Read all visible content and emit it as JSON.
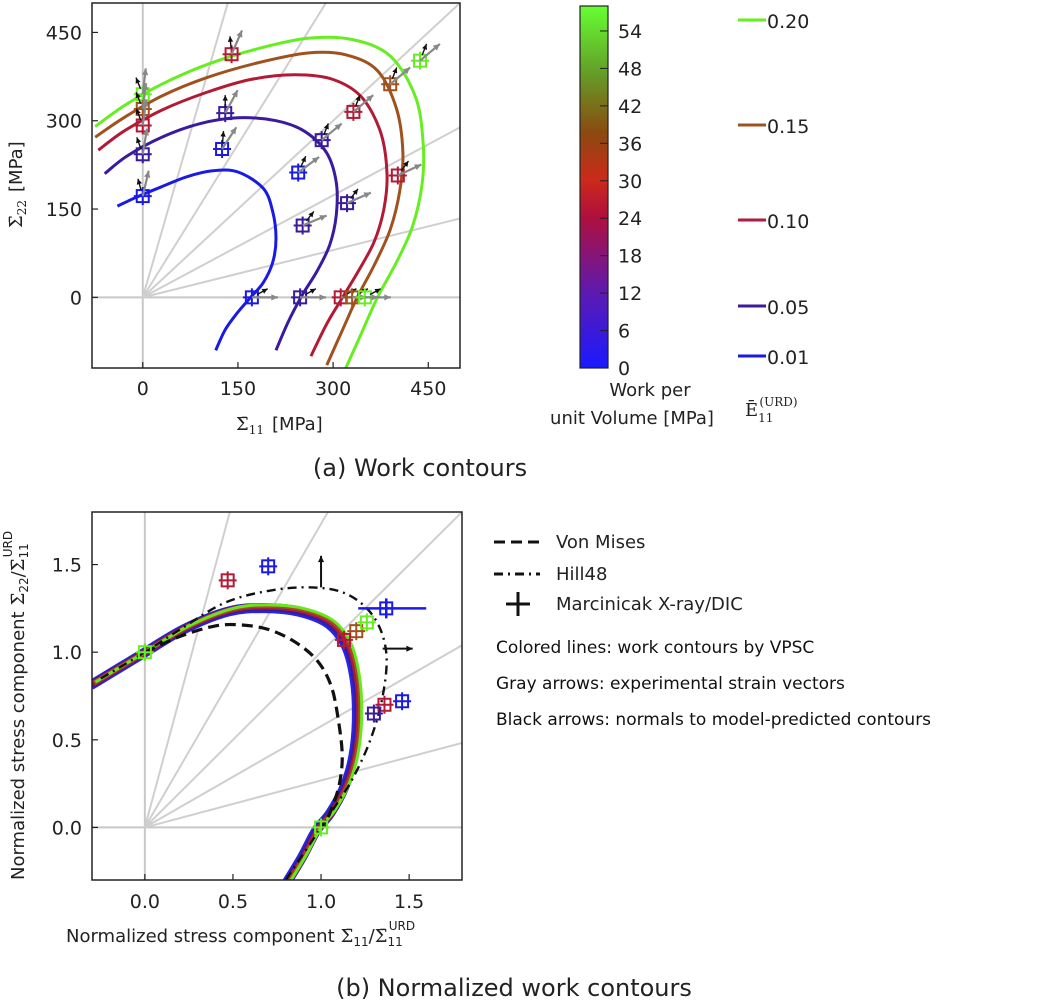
{
  "chart_data": [
    {
      "type": "line",
      "panel": "a",
      "caption": "(a) Work contours",
      "xlabel_symbol": "Σ̄",
      "xlabel_sub": "11",
      "xlabel_unit": "[MPa]",
      "ylabel_symbol": "Σ̄",
      "ylabel_sub": "22",
      "ylabel_unit": "[MPa]",
      "xlim": [
        -80,
        500
      ],
      "ylim": [
        -120,
        500
      ],
      "xticks": [
        0,
        150,
        300,
        450
      ],
      "yticks": [
        0,
        150,
        300,
        450
      ],
      "xtick_labels": [
        "0",
        "150",
        "300",
        "450"
      ],
      "ytick_labels": [
        "0",
        "150",
        "300",
        "450"
      ],
      "grid": "radial reference lines from origin (gray)",
      "colorbar": {
        "label_lines": [
          "Work per",
          "unit Volume [MPa]"
        ],
        "range": [
          0,
          58
        ],
        "ticks": [
          0,
          6,
          12,
          18,
          24,
          30,
          36,
          42,
          48,
          54
        ],
        "tick_labels": [
          "0",
          "6",
          "12",
          "18",
          "24",
          "30",
          "36",
          "42",
          "48",
          "54"
        ],
        "colors": [
          "#1a1aff",
          "#5a1ab4",
          "#b0103c",
          "#cc2a1a",
          "#8a4a10",
          "#64a028",
          "#66ff33"
        ]
      },
      "strain_legend": {
        "label_symbol": "Ē",
        "label_sub": "11",
        "label_sup": "(URD)",
        "entries": [
          {
            "value": 0.2,
            "label": "0.20",
            "color": "#66ee22"
          },
          {
            "value": 0.15,
            "label": "0.15",
            "color": "#a0521e"
          },
          {
            "value": 0.1,
            "label": "0.10",
            "color": "#b21a36"
          },
          {
            "value": 0.05,
            "label": "0.05",
            "color": "#3a1a9e"
          },
          {
            "value": 0.01,
            "label": "0.01",
            "color": "#1a1ae6"
          }
        ]
      },
      "series": [
        {
          "name": "0.20",
          "color": "#66ee22",
          "x": [
            -75,
            -30,
            30,
            100,
            180,
            260,
            330,
            390,
            430,
            442,
            440,
            425,
            400,
            370,
            345,
            320
          ],
          "y": [
            290,
            325,
            362,
            395,
            422,
            440,
            438,
            410,
            340,
            260,
            190,
            120,
            60,
            0,
            -60,
            -120
          ]
        },
        {
          "name": "0.15",
          "color": "#a0521e",
          "x": [
            -75,
            -30,
            30,
            100,
            180,
            260,
            320,
            370,
            400,
            410,
            405,
            390,
            365,
            338,
            315,
            290
          ],
          "y": [
            272,
            305,
            342,
            373,
            398,
            415,
            412,
            385,
            320,
            245,
            180,
            115,
            55,
            0,
            -55,
            -115
          ]
        },
        {
          "name": "0.10",
          "color": "#b21a36",
          "x": [
            -70,
            -30,
            30,
            100,
            170,
            240,
            300,
            345,
            375,
            385,
            380,
            365,
            340,
            315,
            290,
            265
          ],
          "y": [
            250,
            282,
            318,
            348,
            370,
            378,
            370,
            340,
            280,
            210,
            150,
            95,
            45,
            0,
            -45,
            -100
          ]
        },
        {
          "name": "0.05",
          "color": "#3a1a9e",
          "x": [
            -60,
            -25,
            30,
            90,
            150,
            210,
            255,
            290,
            305,
            305,
            295,
            275,
            252,
            230,
            210
          ],
          "y": [
            210,
            240,
            272,
            295,
            305,
            300,
            282,
            245,
            195,
            140,
            90,
            45,
            5,
            -40,
            -90
          ]
        },
        {
          "name": "0.01",
          "color": "#1a1ae6",
          "x": [
            -40,
            -10,
            30,
            70,
            110,
            150,
            190,
            205,
            210,
            205,
            190,
            170,
            150,
            130,
            115
          ],
          "y": [
            155,
            170,
            188,
            205,
            215,
            213,
            185,
            145,
            100,
            60,
            25,
            0,
            -25,
            -55,
            -90
          ]
        }
      ],
      "experimental_points": [
        {
          "x": 0,
          "y": 345,
          "color": "#66ee22"
        },
        {
          "x": 0,
          "y": 320,
          "color": "#a0521e"
        },
        {
          "x": 0,
          "y": 292,
          "color": "#b21a36"
        },
        {
          "x": 0,
          "y": 243,
          "color": "#3a1a9e"
        },
        {
          "x": 0,
          "y": 172,
          "color": "#1a1ae6"
        },
        {
          "x": 140,
          "y": 413,
          "color": "#b21a36"
        },
        {
          "x": 130,
          "y": 313,
          "color": "#3a1a9e"
        },
        {
          "x": 125,
          "y": 252,
          "color": "#1a1ae6"
        },
        {
          "x": 245,
          "y": 212,
          "color": "#1a1ae6"
        },
        {
          "x": 282,
          "y": 267,
          "color": "#3a1a9e"
        },
        {
          "x": 332,
          "y": 315,
          "color": "#b21a36"
        },
        {
          "x": 390,
          "y": 362,
          "color": "#a0521e"
        },
        {
          "x": 437,
          "y": 402,
          "color": "#66ee22"
        },
        {
          "x": 402,
          "y": 207,
          "color": "#b21a36"
        },
        {
          "x": 322,
          "y": 160,
          "color": "#3a1a9e"
        },
        {
          "x": 252,
          "y": 122,
          "color": "#3a1a9e"
        },
        {
          "x": 172,
          "y": 0,
          "color": "#1a1ae6"
        },
        {
          "x": 248,
          "y": 0,
          "color": "#3a1a9e"
        },
        {
          "x": 312,
          "y": 0,
          "color": "#b21a36"
        },
        {
          "x": 330,
          "y": 0,
          "color": "#a0521e"
        },
        {
          "x": 350,
          "y": 0,
          "color": "#66ee22"
        }
      ]
    },
    {
      "type": "line",
      "panel": "b",
      "caption": "(b) Normalized work contours",
      "xlabel": "Normalized stress component",
      "xlabel_symbol": "Σ̄",
      "xlabel_ratio_sub": "11",
      "xlabel_ratio_sup": "URD",
      "ylabel": "Normalized stress component",
      "ylabel_symbol": "Σ̄",
      "ylabel_num_sub": "22",
      "ylabel_den_sub": "11",
      "ylabel_sup": "URD",
      "xlim": [
        -0.3,
        1.8
      ],
      "ylim": [
        -0.3,
        1.8
      ],
      "xticks": [
        0.0,
        0.5,
        1.0,
        1.5
      ],
      "yticks": [
        0.0,
        0.5,
        1.0,
        1.5
      ],
      "xtick_labels": [
        "0.0",
        "0.5",
        "1.0",
        "1.5"
      ],
      "ytick_labels": [
        "0.0",
        "0.5",
        "1.0",
        "1.5"
      ],
      "legend": [
        {
          "label": "Von Mises",
          "style": "dashed"
        },
        {
          "label": "Hill48",
          "style": "dash-dot"
        },
        {
          "label": "Marcinicak X-ray/DIC",
          "style": "errorbar"
        }
      ],
      "notes": [
        "Colored lines: work contours by VPSC",
        "Gray arrows: experimental strain vectors",
        "Black arrows: normals to model-predicted contours"
      ],
      "von_mises": {
        "x": [
          0.0,
          0.2,
          0.4,
          0.55,
          0.7,
          0.85,
          0.98,
          1.06,
          1.1,
          1.12,
          1.11,
          1.08,
          1.04,
          1.0
        ],
        "y": [
          1.0,
          1.09,
          1.15,
          1.155,
          1.13,
          1.06,
          0.95,
          0.8,
          0.6,
          0.42,
          0.28,
          0.16,
          0.06,
          0.0
        ]
      },
      "hill48": {
        "x": [
          -0.25,
          0.0,
          0.2,
          0.45,
          0.7,
          0.95,
          1.15,
          1.3,
          1.37,
          1.35,
          1.28,
          1.18,
          1.08,
          1.0,
          0.9,
          0.8
        ],
        "y": [
          0.85,
          1.0,
          1.13,
          1.28,
          1.35,
          1.37,
          1.33,
          1.2,
          1.0,
          0.75,
          0.5,
          0.28,
          0.12,
          0.0,
          -0.15,
          -0.3
        ]
      },
      "vpsc_band": {
        "x": [
          -0.28,
          0.0,
          0.25,
          0.5,
          0.7,
          0.9,
          1.07,
          1.17,
          1.22,
          1.23,
          1.21,
          1.16,
          1.08,
          1.0,
          0.92,
          0.83
        ],
        "y": [
          0.83,
          1.0,
          1.15,
          1.25,
          1.27,
          1.25,
          1.18,
          1.05,
          0.85,
          0.62,
          0.42,
          0.25,
          0.1,
          0.0,
          -0.15,
          -0.3
        ]
      },
      "experimental_points": [
        {
          "x": 0.47,
          "y": 1.41,
          "color": "#b21a36"
        },
        {
          "x": 0.7,
          "y": 1.49,
          "color": "#1a1ae6"
        },
        {
          "x": 1.2,
          "y": 1.12,
          "color": "#a0521e"
        },
        {
          "x": 1.26,
          "y": 1.17,
          "color": "#66ee22"
        },
        {
          "x": 1.37,
          "y": 1.25,
          "color": "#1a1ae6"
        },
        {
          "x": 1.13,
          "y": 1.07,
          "color": "#b21a36"
        },
        {
          "x": 1.36,
          "y": 0.7,
          "color": "#b21a36"
        },
        {
          "x": 1.3,
          "y": 0.65,
          "color": "#3a1a9e"
        },
        {
          "x": 1.46,
          "y": 0.72,
          "color": "#1a1ae6"
        },
        {
          "x": 0.0,
          "y": 1.0,
          "color": "#66ee22"
        },
        {
          "x": 1.0,
          "y": 0.0,
          "color": "#66ee22"
        }
      ]
    }
  ]
}
